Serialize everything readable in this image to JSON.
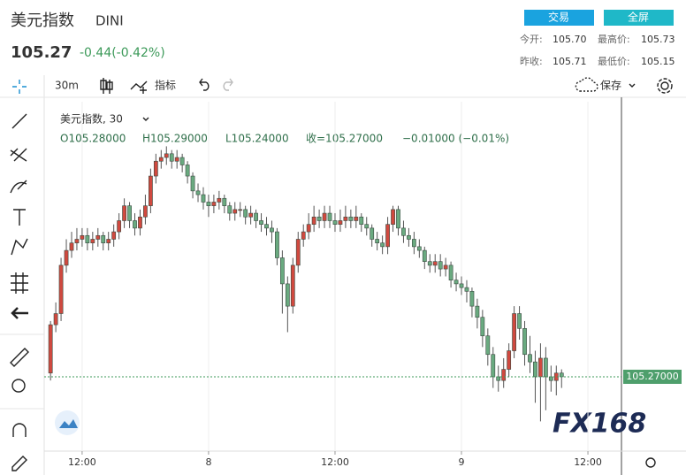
{
  "header": {
    "title": "美元指数",
    "code": "DINI",
    "price": "105.27",
    "change": "-0.44(-0.42%)",
    "buttons": [
      "交易",
      "全屏"
    ],
    "stats": [
      [
        "今开:",
        "105.70",
        "最高价:",
        "105.73"
      ],
      [
        "昨收:",
        "105.71",
        "最低价:",
        "105.15"
      ]
    ]
  },
  "toolbar": {
    "interval": "30m",
    "indicators": "指标",
    "save": "保存"
  },
  "legend": {
    "name": "美元指数, 30",
    "open": "O105.28000",
    "high": "H105.29000",
    "low": "L105.24000",
    "close": "收=105.27000",
    "change": "−0.01000 (−0.01%)"
  },
  "last_price_label": "105.27000",
  "watermark": "FX168",
  "chart_data": {
    "type": "candlestick",
    "up_color": "#d0493f",
    "down_color": "#6aaa80",
    "grid": true,
    "xlim": [
      -1.2,
      108.2
    ],
    "ylim": [
      105.07,
      106.01
    ],
    "xticks": [
      {
        "value": 6,
        "label": "12:00"
      },
      {
        "value": 30,
        "label": "8"
      },
      {
        "value": 54,
        "label": "12:00"
      },
      {
        "value": 78,
        "label": "9"
      },
      {
        "value": 102,
        "label": "12:00"
      }
    ],
    "x": [
      0,
      1,
      2,
      3,
      4,
      5,
      6,
      7,
      8,
      9,
      10,
      11,
      12,
      13,
      14,
      15,
      16,
      17,
      18,
      19,
      20,
      21,
      22,
      23,
      24,
      25,
      26,
      27,
      28,
      29,
      30,
      31,
      32,
      33,
      34,
      35,
      36,
      37,
      38,
      39,
      40,
      41,
      42,
      43,
      44,
      45,
      46,
      47,
      48,
      49,
      50,
      51,
      52,
      53,
      54,
      55,
      56,
      57,
      58,
      59,
      60,
      61,
      62,
      63,
      64,
      65,
      66,
      67,
      68,
      69,
      70,
      71,
      72,
      73,
      74,
      75,
      76,
      77,
      78,
      79,
      80,
      81,
      82,
      83,
      84,
      85,
      86,
      87,
      88,
      89,
      90,
      91,
      92,
      93,
      94,
      95,
      96,
      97
    ],
    "open": [
      105.28,
      105.41,
      105.44,
      105.57,
      105.61,
      105.63,
      105.64,
      105.65,
      105.63,
      105.64,
      105.65,
      105.63,
      105.64,
      105.66,
      105.69,
      105.73,
      105.69,
      105.67,
      105.7,
      105.73,
      105.81,
      105.85,
      105.86,
      105.87,
      105.85,
      105.86,
      105.84,
      105.81,
      105.77,
      105.76,
      105.74,
      105.73,
      105.74,
      105.75,
      105.73,
      105.71,
      105.72,
      105.72,
      105.7,
      105.71,
      105.69,
      105.68,
      105.67,
      105.66,
      105.59,
      105.52,
      105.46,
      105.57,
      105.64,
      105.66,
      105.68,
      105.7,
      105.69,
      105.71,
      105.69,
      105.68,
      105.69,
      105.7,
      105.69,
      105.7,
      105.68,
      105.67,
      105.64,
      105.63,
      105.62,
      105.68,
      105.72,
      105.67,
      105.65,
      105.64,
      105.62,
      105.61,
      105.58,
      105.57,
      105.58,
      105.56,
      105.57,
      105.53,
      105.52,
      105.51,
      105.5,
      105.46,
      105.43,
      105.38,
      105.33,
      105.27,
      105.26,
      105.29,
      105.34,
      105.44,
      105.4,
      105.33,
      105.31,
      105.27,
      105.32,
      105.27,
      105.26,
      105.28
    ],
    "high": [
      105.42,
      105.47,
      105.59,
      105.64,
      105.66,
      105.67,
      105.67,
      105.67,
      105.66,
      105.67,
      105.66,
      105.66,
      105.68,
      105.71,
      105.75,
      105.74,
      105.71,
      105.72,
      105.76,
      105.83,
      105.87,
      105.88,
      105.89,
      105.88,
      105.88,
      105.87,
      105.85,
      105.82,
      105.79,
      105.78,
      105.76,
      105.76,
      105.77,
      105.76,
      105.74,
      105.74,
      105.74,
      105.73,
      105.73,
      105.72,
      105.71,
      105.7,
      105.69,
      105.67,
      105.61,
      105.54,
      105.59,
      105.66,
      105.68,
      105.71,
      105.73,
      105.72,
      105.73,
      105.73,
      105.71,
      105.72,
      105.73,
      105.72,
      105.73,
      105.71,
      105.7,
      105.68,
      105.66,
      105.65,
      105.7,
      105.73,
      105.73,
      105.69,
      105.67,
      105.66,
      105.64,
      105.62,
      105.6,
      105.6,
      105.6,
      105.59,
      105.58,
      105.55,
      105.54,
      105.53,
      105.51,
      105.48,
      105.45,
      105.4,
      105.35,
      105.3,
      105.32,
      105.36,
      105.46,
      105.46,
      105.42,
      105.38,
      105.34,
      105.36,
      105.35,
      105.3,
      105.3,
      105.29
    ],
    "low": [
      105.26,
      105.39,
      105.42,
      105.55,
      105.59,
      105.61,
      105.62,
      105.61,
      105.61,
      105.62,
      105.61,
      105.61,
      105.62,
      105.64,
      105.67,
      105.67,
      105.65,
      105.65,
      105.68,
      105.71,
      105.79,
      105.83,
      105.84,
      105.83,
      105.83,
      105.82,
      105.79,
      105.75,
      105.74,
      105.72,
      105.7,
      105.71,
      105.72,
      105.71,
      105.69,
      105.69,
      105.7,
      105.68,
      105.68,
      105.67,
      105.66,
      105.65,
      105.63,
      105.57,
      105.44,
      105.39,
      105.44,
      105.55,
      105.62,
      105.64,
      105.66,
      105.67,
      105.67,
      105.67,
      105.66,
      105.66,
      105.67,
      105.67,
      105.67,
      105.66,
      105.65,
      105.62,
      105.61,
      105.6,
      105.6,
      105.66,
      105.65,
      105.63,
      105.62,
      105.6,
      105.59,
      105.56,
      105.55,
      105.55,
      105.54,
      105.54,
      105.51,
      105.5,
      105.49,
      105.47,
      105.43,
      105.4,
      105.35,
      105.3,
      105.24,
      105.23,
      105.24,
      105.27,
      105.32,
      105.37,
      105.3,
      105.28,
      105.2,
      105.15,
      105.18,
      105.23,
      105.22,
      105.24
    ],
    "close": [
      105.41,
      105.44,
      105.57,
      105.61,
      105.63,
      105.64,
      105.65,
      105.63,
      105.64,
      105.65,
      105.63,
      105.64,
      105.66,
      105.69,
      105.73,
      105.69,
      105.67,
      105.7,
      105.73,
      105.81,
      105.85,
      105.86,
      105.87,
      105.85,
      105.86,
      105.84,
      105.81,
      105.77,
      105.76,
      105.74,
      105.73,
      105.74,
      105.75,
      105.73,
      105.71,
      105.72,
      105.72,
      105.7,
      105.71,
      105.69,
      105.68,
      105.67,
      105.66,
      105.59,
      105.52,
      105.46,
      105.57,
      105.64,
      105.66,
      105.68,
      105.7,
      105.69,
      105.71,
      105.69,
      105.68,
      105.69,
      105.7,
      105.69,
      105.7,
      105.68,
      105.67,
      105.64,
      105.63,
      105.62,
      105.68,
      105.72,
      105.67,
      105.65,
      105.64,
      105.62,
      105.61,
      105.58,
      105.57,
      105.58,
      105.56,
      105.57,
      105.53,
      105.52,
      105.51,
      105.5,
      105.46,
      105.43,
      105.38,
      105.33,
      105.27,
      105.26,
      105.29,
      105.34,
      105.44,
      105.4,
      105.33,
      105.31,
      105.27,
      105.32,
      105.27,
      105.26,
      105.28,
      105.27
    ]
  }
}
